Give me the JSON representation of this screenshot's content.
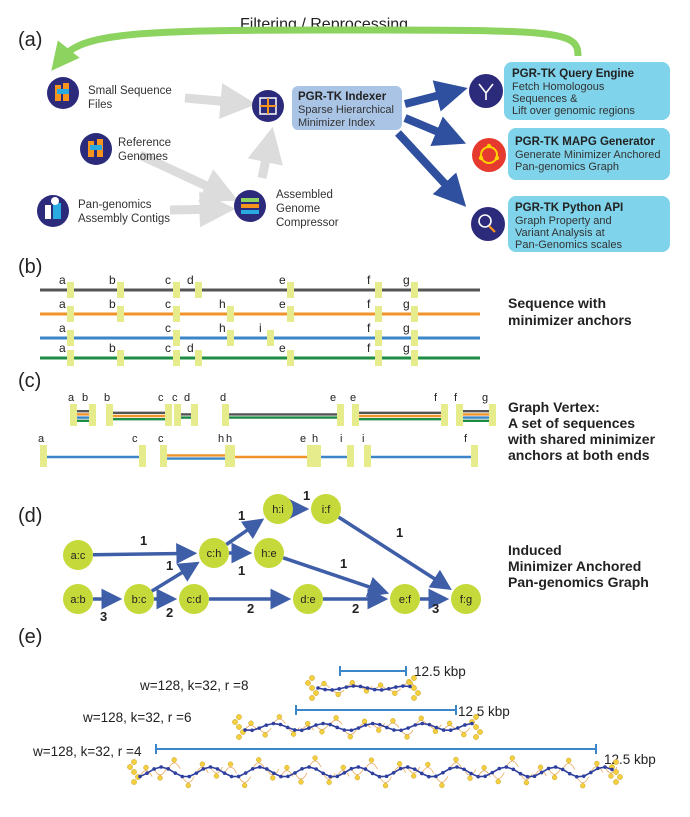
{
  "panel_a": {
    "panel_label": "(a)",
    "feedback_label": "Filtering / Reprocessing",
    "sources": [
      {
        "lines": [
          "Small Sequence",
          "Files"
        ],
        "icon": "small-sequence-files-icon"
      },
      {
        "lines": [
          "Reference",
          "Genomes"
        ],
        "icon": "reference-genomes-icon"
      },
      {
        "lines": [
          "Pan-genomics",
          "Assembly Contigs"
        ],
        "icon": "assembly-contigs-icon"
      }
    ],
    "compressor": {
      "lines": [
        "Assembled",
        "Genome",
        "Compressor"
      ],
      "icon": "genome-compressor-icon"
    },
    "indexer": {
      "title": "PGR-TK Indexer",
      "lines": [
        "Sparse Hierarchical",
        "Minimizer Index"
      ],
      "icon": "indexer-icon"
    },
    "outputs": [
      {
        "title": "PGR-TK Query Engine",
        "lines": [
          "Fetch Homologous",
          "Sequences &",
          "Lift over genomic regions"
        ],
        "icon": "query-engine-icon"
      },
      {
        "title": "PGR-TK MAPG Generator",
        "lines": [
          "Generate Minimizer Anchored",
          "Pan-genomics Graph"
        ],
        "icon": "mapg-generator-icon"
      },
      {
        "title": "PGR-TK Python API",
        "lines": [
          "Graph Property and",
          "Variant Analysis at",
          " Pan-Genomics scales"
        ],
        "icon": "python-api-icon"
      }
    ],
    "colors": {
      "feedback": "#8dd35f",
      "arrow_main": "#2f4f9f",
      "arrow_grey": "#dcdcdc",
      "indexer_box": "#aac4e6",
      "output_box": "#7fd3ea"
    }
  },
  "panel_b": {
    "panel_label": "(b)",
    "caption": [
      "Sequence with",
      "minimizer anchors"
    ],
    "sequences": [
      {
        "color": "#555555",
        "anchors": [
          "a",
          "b",
          "c",
          "d",
          "e",
          "f",
          "g"
        ]
      },
      {
        "color": "#f0932b",
        "anchors": [
          "a",
          "b",
          "c",
          "h",
          "e",
          "f",
          "g"
        ]
      },
      {
        "color": "#3b86c8",
        "anchors": [
          "a",
          "c",
          "h",
          "i",
          "f",
          "g"
        ]
      },
      {
        "color": "#1e8c45",
        "anchors": [
          "a",
          "b",
          "c",
          "d",
          "e",
          "f",
          "g"
        ]
      }
    ],
    "anchor_color": "#e6ec8c"
  },
  "panel_c": {
    "panel_label": "(c)",
    "caption": [
      "Graph Vertex:",
      "A set of sequences",
      "with shared minimizer",
      "anchors at both ends"
    ],
    "row1": [
      {
        "from": "a",
        "to": "b",
        "colors": [
          "#555555",
          "#f0932b",
          "#3b86c8",
          "#1e8c45"
        ]
      },
      {
        "from": "b",
        "to": "c",
        "colors": [
          "#555555",
          "#f0932b",
          "#1e8c45"
        ]
      },
      {
        "from": "c",
        "to": "d",
        "colors": [
          "#555555",
          "#1e8c45"
        ]
      },
      {
        "from": "d",
        "to": "e",
        "colors": [
          "#555555",
          "#1e8c45"
        ]
      },
      {
        "from": "e",
        "to": "f",
        "colors": [
          "#555555",
          "#f0932b",
          "#1e8c45"
        ]
      },
      {
        "from": "f",
        "to": "g",
        "colors": [
          "#555555",
          "#f0932b",
          "#3b86c8",
          "#1e8c45"
        ]
      }
    ],
    "row2": [
      {
        "from": "a",
        "to": "c",
        "colors": [
          "#3b86c8"
        ]
      },
      {
        "from": "c",
        "to": "h",
        "colors": [
          "#f0932b",
          "#3b86c8"
        ]
      },
      {
        "from": "h",
        "to": "e",
        "colors": [
          "#f0932b"
        ]
      },
      {
        "from": "h",
        "to": "i",
        "colors": [
          "#3b86c8"
        ]
      },
      {
        "from": "i",
        "to": "f",
        "colors": [
          "#3b86c8"
        ]
      }
    ]
  },
  "panel_d": {
    "panel_label": "(d)",
    "caption": [
      "Induced",
      "Minimizer Anchored",
      "Pan-genomics Graph"
    ],
    "nodes": [
      "a:c",
      "a:b",
      "b:c",
      "c:h",
      "c:d",
      "h:i",
      "i:f",
      "h:e",
      "d:e",
      "e:f",
      "f:g"
    ],
    "edges": [
      {
        "from": "a:c",
        "to": "c:h",
        "label": "1"
      },
      {
        "from": "a:b",
        "to": "b:c",
        "label": "3"
      },
      {
        "from": "b:c",
        "to": "c:h",
        "label": "1"
      },
      {
        "from": "b:c",
        "to": "c:d",
        "label": "2"
      },
      {
        "from": "c:h",
        "to": "h:i",
        "label": "1"
      },
      {
        "from": "c:h",
        "to": "h:e",
        "label": "1"
      },
      {
        "from": "h:i",
        "to": "i:f",
        "label": "1"
      },
      {
        "from": "i:f",
        "to": "f:g",
        "label": "1"
      },
      {
        "from": "h:e",
        "to": "e:f",
        "label": "1"
      },
      {
        "from": "c:d",
        "to": "d:e",
        "label": "2"
      },
      {
        "from": "d:e",
        "to": "e:f",
        "label": "2"
      },
      {
        "from": "e:f",
        "to": "f:g",
        "label": "3"
      }
    ],
    "colors": {
      "node": "#c5d93a",
      "edge": "#3f5ea8"
    }
  },
  "panel_e": {
    "panel_label": "(e)",
    "rows": [
      {
        "params": "w=128, k=32, r =8",
        "scale": "12.5 kbp"
      },
      {
        "params": "w=128, k=32, r =6",
        "scale": "12.5 kbp"
      },
      {
        "params": "w=128, k=32, r =4",
        "scale": "12.5 kbp"
      }
    ],
    "colors": {
      "scale_bar": "#3b86c8",
      "main_path": "#2e3f9e",
      "side_nodes": "#f4d03f",
      "side_edges": "#e8a85c"
    }
  }
}
